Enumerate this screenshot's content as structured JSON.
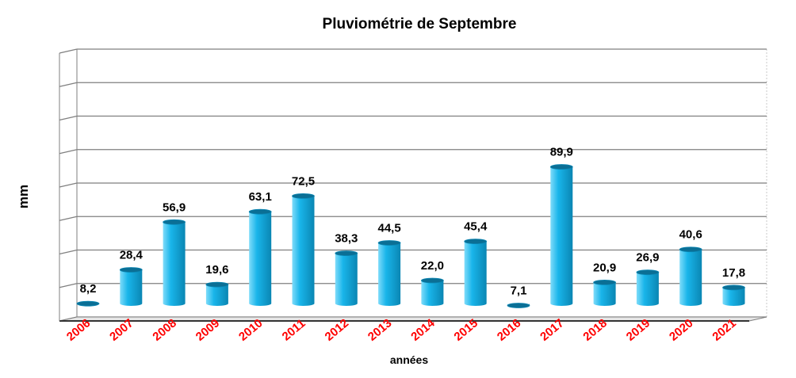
{
  "chart_data": {
    "type": "bar",
    "title": "Pluviométrie de Septembre",
    "xlabel": "années",
    "ylabel": "mm",
    "categories": [
      "2006",
      "2007",
      "2008",
      "2009",
      "2010",
      "2011",
      "2012",
      "2013",
      "2014",
      "2015",
      "2016",
      "2017",
      "2018",
      "2019",
      "2020",
      "2021"
    ],
    "values": [
      8.2,
      28.4,
      56.9,
      19.6,
      63.1,
      72.5,
      38.3,
      44.5,
      22.0,
      45.4,
      7.1,
      89.9,
      20.9,
      26.9,
      40.6,
      17.8
    ],
    "data_labels": [
      "8,2",
      "28,4",
      "56,9",
      "19,6",
      "63,1",
      "72,5",
      "38,3",
      "44,5",
      "22,0",
      "45,4",
      "7,1",
      "89,9",
      "20,9",
      "26,9",
      "40,6",
      "17,8"
    ],
    "ylim": [
      0,
      160
    ],
    "y_gridline_step": 20,
    "y_tick_labels_shown": false,
    "grid": true,
    "legend": "none",
    "colors": {
      "bar": "#19b5ea",
      "bar_light": "#7fdcfa",
      "bar_dark": "#0a86b3",
      "tick_labels": "#ff0000",
      "grid": "#7f7f7f"
    }
  }
}
